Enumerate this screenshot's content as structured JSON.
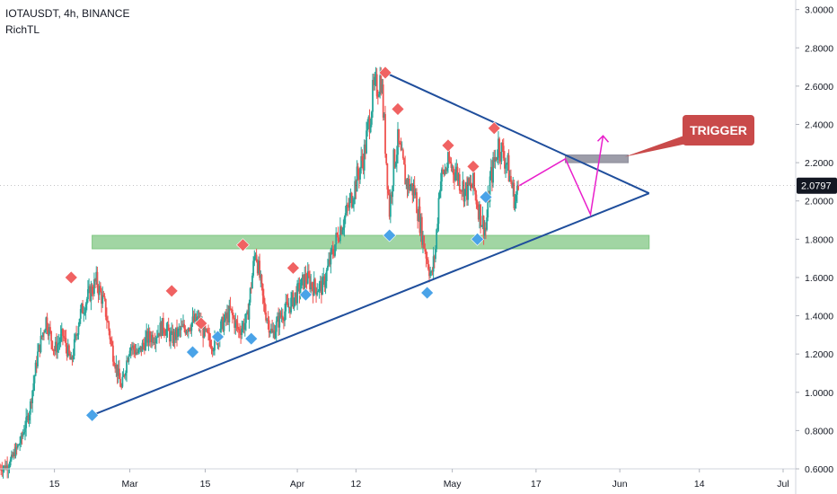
{
  "legend": {
    "symbol_line": "IOTAUSDT, 4h, BINANCE",
    "indicator": "RichTL"
  },
  "price_badge": "2.0797",
  "trigger_label": "TRIGGER",
  "colors": {
    "bull": "#26a69a",
    "bear": "#ef5350",
    "trendline": "#1f4e9c",
    "support_zone": "#81c784",
    "trigger_zone": "#8c8c9a",
    "projection": "#e91ecb",
    "trigger_box": "#c94a4a",
    "high_marker": "#f06262",
    "low_marker": "#4aa3e8",
    "badge": "#131722"
  },
  "chart_data": {
    "type": "candlestick",
    "title": "IOTAUSDT, 4h, BINANCE",
    "ylim": [
      0.6,
      3.05
    ],
    "y_ticks": [
      "0.6000",
      "0.8000",
      "1.0000",
      "1.2000",
      "1.4000",
      "1.6000",
      "1.8000",
      "2.0000",
      "2.2000",
      "2.4000",
      "2.6000",
      "2.8000",
      "3.0000"
    ],
    "x_ticks": [
      "15",
      "Mar",
      "15",
      "Apr",
      "12",
      "May",
      "17",
      "Jun",
      "14",
      "Jul"
    ],
    "last_price": 2.0797,
    "price_path": [
      [
        0,
        0.6
      ],
      [
        2,
        0.62
      ],
      [
        5,
        0.75
      ],
      [
        7,
        0.9
      ],
      [
        9,
        1.2
      ],
      [
        11,
        1.38
      ],
      [
        13,
        1.22
      ],
      [
        15,
        1.3
      ],
      [
        17,
        1.15
      ],
      [
        19,
        1.4
      ],
      [
        21,
        1.5
      ],
      [
        23,
        1.58
      ],
      [
        25,
        1.45
      ],
      [
        27,
        1.2
      ],
      [
        29,
        1.02
      ],
      [
        31,
        1.25
      ],
      [
        33,
        1.2
      ],
      [
        35,
        1.28
      ],
      [
        37,
        1.3
      ],
      [
        39,
        1.35
      ],
      [
        41,
        1.28
      ],
      [
        43,
        1.32
      ],
      [
        45,
        1.35
      ],
      [
        47,
        1.38
      ],
      [
        49,
        1.3
      ],
      [
        51,
        1.25
      ],
      [
        53,
        1.35
      ],
      [
        55,
        1.42
      ],
      [
        57,
        1.32
      ],
      [
        59,
        1.38
      ],
      [
        61,
        1.75
      ],
      [
        63,
        1.45
      ],
      [
        65,
        1.3
      ],
      [
        67,
        1.4
      ],
      [
        69,
        1.45
      ],
      [
        71,
        1.52
      ],
      [
        73,
        1.6
      ],
      [
        75,
        1.55
      ],
      [
        77,
        1.55
      ],
      [
        79,
        1.7
      ],
      [
        81,
        1.85
      ],
      [
        83,
        1.95
      ],
      [
        85,
        2.1
      ],
      [
        87,
        2.25
      ],
      [
        89,
        2.55
      ],
      [
        91,
        2.65
      ],
      [
        92,
        2.3
      ],
      [
        93,
        1.95
      ],
      [
        94,
        2.2
      ],
      [
        95,
        2.3
      ],
      [
        97,
        2.1
      ],
      [
        99,
        2.05
      ],
      [
        101,
        1.8
      ],
      [
        103,
        1.6
      ],
      [
        104,
        1.75
      ],
      [
        105,
        2.1
      ],
      [
        107,
        2.2
      ],
      [
        109,
        2.15
      ],
      [
        111,
        2.05
      ],
      [
        113,
        2.08
      ],
      [
        115,
        1.9
      ],
      [
        116,
        1.85
      ],
      [
        117,
        2.1
      ],
      [
        119,
        2.3
      ],
      [
        121,
        2.2
      ],
      [
        123,
        2.0
      ],
      [
        124,
        2.08
      ]
    ],
    "swing_highs": [
      [
        17,
        1.6
      ],
      [
        41,
        1.53
      ],
      [
        48,
        1.36
      ],
      [
        58,
        1.77
      ],
      [
        70,
        1.65
      ],
      [
        92,
        2.67
      ],
      [
        95,
        2.48
      ],
      [
        107,
        2.29
      ],
      [
        113,
        2.18
      ],
      [
        118,
        2.38
      ]
    ],
    "swing_lows": [
      [
        22,
        0.88
      ],
      [
        46,
        1.21
      ],
      [
        52,
        1.29
      ],
      [
        60,
        1.28
      ],
      [
        73,
        1.51
      ],
      [
        93,
        1.82
      ],
      [
        102,
        1.52
      ],
      [
        116,
        2.02
      ],
      [
        114,
        1.8
      ]
    ],
    "upper_trendline": [
      [
        92,
        2.67
      ],
      [
        155,
        2.04
      ]
    ],
    "lower_trendline": [
      [
        22,
        0.88
      ],
      [
        155,
        2.04
      ]
    ],
    "support_zone": {
      "from": 22,
      "to": 155,
      "y_top": 1.82,
      "y_bottom": 1.75
    },
    "trigger_zone": {
      "from": 135,
      "to": 150,
      "y_top": 2.24,
      "y_bottom": 2.2
    },
    "projection_path": [
      [
        124,
        2.08
      ],
      [
        135,
        2.22
      ],
      [
        141,
        1.93
      ],
      [
        144,
        2.34
      ]
    ],
    "x_domain": [
      0,
      190
    ],
    "x_tick_positions": [
      13,
      31,
      49,
      71,
      85,
      108,
      128,
      148,
      167,
      187
    ]
  }
}
